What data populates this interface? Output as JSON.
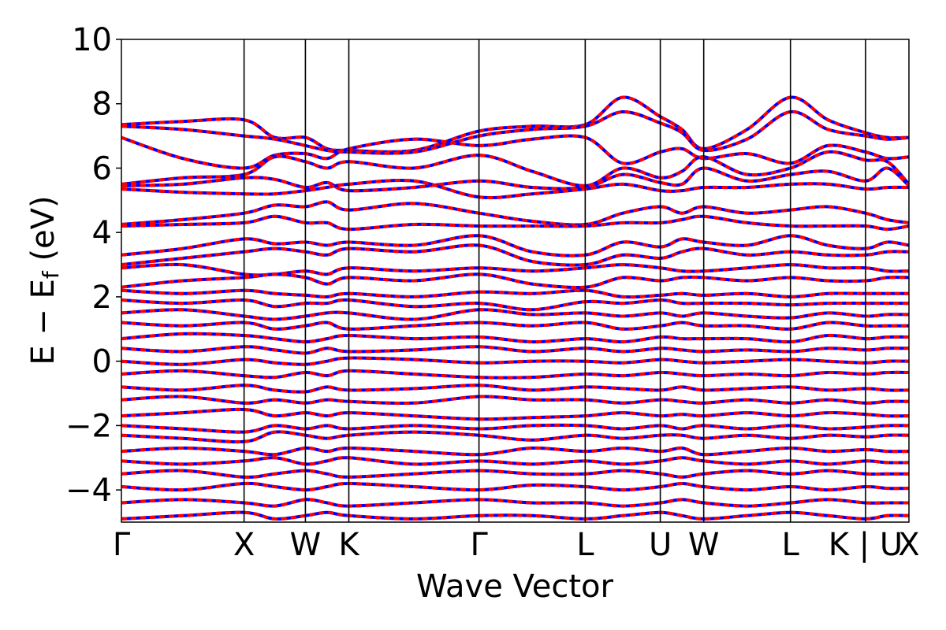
{
  "chart_data": {
    "type": "line",
    "title": "",
    "xlabel": "Wave Vector",
    "ylabel_parts": [
      "E",
      " − ",
      "E",
      "f",
      " (eV)"
    ],
    "ylim": [
      -5,
      10
    ],
    "yticks": [
      -4,
      -2,
      0,
      2,
      4,
      6,
      8,
      10
    ],
    "ytick_labels": [
      "−4",
      "−2",
      "0",
      "2",
      "4",
      "6",
      "8",
      "10"
    ],
    "grid": false,
    "legend": "none",
    "kpath": [
      {
        "label": "Γ",
        "x": 0.0
      },
      {
        "label": "X",
        "x": 1.0
      },
      {
        "label": "W",
        "x": 1.5
      },
      {
        "label": "K",
        "x": 1.854
      },
      {
        "label": "Γ",
        "x": 2.915
      },
      {
        "label": "L",
        "x": 3.781
      },
      {
        "label": "U",
        "x": 4.393
      },
      {
        "label": "W",
        "x": 4.747
      },
      {
        "label": "L",
        "x": 5.454
      },
      {
        "label": "K | U",
        "x": 6.066
      },
      {
        "label": "X",
        "x": 6.42
      }
    ],
    "series": [
      {
        "style": "solid",
        "color": "#0000ff"
      },
      {
        "style": "dashed",
        "color": "#ff0000"
      }
    ],
    "bands": [
      [
        7.35,
        7.45,
        7.5,
        6.95,
        6.95,
        6.6,
        6.55,
        6.55,
        7.15,
        7.3,
        7.35,
        8.2,
        7.6,
        7.2,
        6.6,
        7.2,
        8.2,
        7.5,
        7.1,
        6.95,
        6.95
      ],
      [
        7.3,
        7.2,
        7.0,
        6.9,
        6.7,
        6.55,
        6.5,
        6.5,
        7.0,
        7.2,
        7.3,
        7.75,
        7.4,
        7.1,
        6.55,
        6.9,
        7.75,
        7.2,
        7.0,
        6.9,
        6.95
      ],
      [
        6.95,
        6.3,
        6.0,
        6.4,
        6.45,
        6.3,
        6.6,
        6.9,
        6.7,
        6.9,
        6.95,
        6.15,
        6.5,
        6.6,
        6.3,
        6.45,
        6.15,
        6.7,
        6.5,
        6.3,
        6.35
      ],
      [
        5.5,
        5.7,
        5.8,
        6.35,
        6.2,
        6.0,
        6.2,
        6.0,
        6.4,
        5.9,
        5.45,
        6.0,
        5.7,
        5.9,
        6.35,
        5.8,
        6.0,
        6.5,
        6.25,
        6.2,
        5.5
      ],
      [
        5.45,
        5.5,
        5.7,
        5.65,
        5.4,
        5.55,
        5.3,
        5.4,
        5.6,
        5.4,
        5.4,
        5.8,
        5.55,
        5.5,
        6.0,
        5.6,
        5.8,
        5.9,
        5.6,
        6.0,
        5.45
      ],
      [
        5.35,
        5.25,
        5.2,
        5.2,
        5.3,
        5.4,
        5.5,
        5.6,
        5.1,
        5.2,
        5.35,
        5.5,
        5.3,
        5.3,
        5.4,
        5.4,
        5.5,
        5.5,
        5.35,
        5.4,
        5.4
      ],
      [
        4.25,
        4.4,
        4.6,
        4.85,
        4.8,
        4.95,
        4.7,
        4.9,
        4.6,
        4.35,
        4.25,
        4.6,
        4.8,
        4.6,
        4.8,
        4.6,
        4.7,
        4.8,
        4.6,
        4.4,
        4.3
      ],
      [
        4.2,
        4.25,
        4.3,
        4.5,
        4.3,
        4.3,
        4.1,
        4.25,
        4.2,
        4.2,
        4.2,
        4.3,
        4.3,
        4.4,
        4.5,
        4.3,
        4.2,
        4.2,
        4.2,
        4.1,
        4.2
      ],
      [
        3.3,
        3.5,
        3.8,
        3.65,
        3.7,
        3.6,
        3.7,
        3.6,
        3.9,
        3.4,
        3.3,
        3.7,
        3.55,
        3.8,
        3.7,
        3.6,
        3.9,
        3.6,
        3.5,
        3.7,
        3.6
      ],
      [
        3.0,
        3.2,
        3.4,
        3.5,
        3.4,
        3.3,
        3.5,
        3.4,
        3.6,
        3.1,
        3.0,
        3.3,
        3.2,
        3.4,
        3.5,
        3.3,
        3.4,
        3.3,
        3.3,
        3.4,
        3.4
      ],
      [
        2.9,
        3.0,
        2.7,
        2.7,
        2.8,
        2.7,
        2.9,
        2.8,
        2.9,
        2.8,
        2.9,
        3.0,
        2.9,
        2.8,
        2.8,
        2.9,
        3.0,
        2.9,
        2.9,
        2.8,
        2.8
      ],
      [
        2.3,
        2.5,
        2.6,
        2.7,
        2.6,
        2.4,
        2.6,
        2.5,
        2.7,
        2.4,
        2.3,
        2.6,
        2.5,
        2.6,
        2.6,
        2.5,
        2.6,
        2.5,
        2.5,
        2.6,
        2.6
      ],
      [
        2.2,
        2.1,
        2.2,
        2.1,
        2.05,
        2.0,
        2.1,
        2.0,
        2.15,
        2.1,
        2.2,
        2.0,
        2.05,
        2.1,
        2.05,
        2.1,
        2.0,
        2.1,
        2.1,
        2.1,
        2.1
      ],
      [
        1.9,
        1.8,
        1.9,
        1.7,
        1.8,
        1.8,
        1.9,
        1.7,
        1.8,
        1.6,
        1.85,
        1.8,
        1.9,
        1.8,
        1.8,
        1.8,
        1.75,
        1.8,
        1.8,
        1.8,
        1.8
      ],
      [
        1.5,
        1.6,
        1.4,
        1.3,
        1.4,
        1.5,
        1.5,
        1.3,
        1.6,
        1.45,
        1.5,
        1.4,
        1.5,
        1.4,
        1.5,
        1.4,
        1.35,
        1.5,
        1.4,
        1.45,
        1.45
      ],
      [
        1.2,
        1.1,
        1.2,
        1.0,
        1.1,
        1.2,
        1.0,
        1.1,
        1.2,
        1.1,
        1.2,
        1.0,
        1.1,
        1.2,
        1.1,
        1.1,
        1.0,
        1.2,
        1.1,
        1.1,
        1.1
      ],
      [
        0.7,
        0.85,
        0.8,
        0.7,
        0.6,
        0.7,
        0.8,
        0.7,
        0.75,
        0.6,
        0.7,
        0.6,
        0.75,
        0.7,
        0.7,
        0.7,
        0.6,
        0.8,
        0.7,
        0.75,
        0.75
      ],
      [
        0.4,
        0.3,
        0.45,
        0.35,
        0.25,
        0.4,
        0.3,
        0.35,
        0.45,
        0.3,
        0.4,
        0.3,
        0.4,
        0.35,
        0.3,
        0.35,
        0.3,
        0.4,
        0.35,
        0.4,
        0.4
      ],
      [
        0.0,
        -0.1,
        0.05,
        -0.05,
        -0.1,
        0.0,
        0.1,
        0.05,
        -0.05,
        0.0,
        0.0,
        -0.05,
        0.05,
        0.0,
        -0.05,
        0.0,
        0.05,
        0.0,
        -0.05,
        0.0,
        0.0
      ],
      [
        -0.4,
        -0.3,
        -0.45,
        -0.5,
        -0.35,
        -0.45,
        -0.3,
        -0.4,
        -0.5,
        -0.5,
        -0.4,
        -0.45,
        -0.35,
        -0.4,
        -0.45,
        -0.4,
        -0.45,
        -0.35,
        -0.4,
        -0.35,
        -0.35
      ],
      [
        -0.8,
        -0.9,
        -0.75,
        -0.9,
        -0.95,
        -0.8,
        -0.9,
        -0.85,
        -0.75,
        -0.9,
        -0.8,
        -0.85,
        -0.9,
        -0.8,
        -0.9,
        -0.85,
        -0.8,
        -0.9,
        -0.85,
        -0.9,
        -0.9
      ],
      [
        -1.2,
        -1.1,
        -1.3,
        -1.2,
        -1.3,
        -1.2,
        -1.25,
        -1.3,
        -1.1,
        -1.2,
        -1.2,
        -1.3,
        -1.2,
        -1.25,
        -1.3,
        -1.2,
        -1.3,
        -1.2,
        -1.3,
        -1.25,
        -1.25
      ],
      [
        -1.7,
        -1.6,
        -1.5,
        -1.7,
        -1.6,
        -1.7,
        -1.6,
        -1.7,
        -1.8,
        -1.75,
        -1.7,
        -1.6,
        -1.7,
        -1.65,
        -1.7,
        -1.6,
        -1.7,
        -1.6,
        -1.65,
        -1.7,
        -1.7
      ],
      [
        -2.0,
        -2.1,
        -2.2,
        -2.0,
        -2.1,
        -2.0,
        -2.1,
        -2.0,
        -2.1,
        -2.0,
        -2.0,
        -2.1,
        -2.0,
        -2.1,
        -2.0,
        -2.1,
        -2.0,
        -2.1,
        -2.05,
        -2.0,
        -2.0
      ],
      [
        -2.3,
        -2.4,
        -2.5,
        -2.2,
        -2.3,
        -2.4,
        -2.3,
        -2.2,
        -2.3,
        -2.45,
        -2.3,
        -2.4,
        -2.3,
        -2.3,
        -2.4,
        -2.3,
        -2.4,
        -2.3,
        -2.35,
        -2.3,
        -2.3
      ],
      [
        -2.8,
        -2.7,
        -2.8,
        -2.9,
        -2.7,
        -2.8,
        -2.7,
        -2.8,
        -2.9,
        -2.7,
        -2.8,
        -2.7,
        -2.8,
        -2.7,
        -2.9,
        -2.8,
        -2.7,
        -2.8,
        -2.75,
        -2.8,
        -2.8
      ],
      [
        -3.1,
        -3.2,
        -3.1,
        -3.0,
        -3.2,
        -3.1,
        -3.0,
        -3.2,
        -3.1,
        -3.2,
        -3.1,
        -3.2,
        -3.1,
        -3.0,
        -3.1,
        -3.2,
        -3.1,
        -3.2,
        -3.1,
        -3.15,
        -3.15
      ],
      [
        -3.5,
        -3.4,
        -3.6,
        -3.5,
        -3.4,
        -3.5,
        -3.6,
        -3.5,
        -3.4,
        -3.5,
        -3.5,
        -3.4,
        -3.5,
        -3.6,
        -3.5,
        -3.4,
        -3.5,
        -3.4,
        -3.5,
        -3.5,
        -3.5
      ],
      [
        -3.9,
        -4.0,
        -3.8,
        -3.9,
        -4.0,
        -3.9,
        -3.8,
        -3.9,
        -4.0,
        -3.85,
        -3.9,
        -4.0,
        -3.9,
        -3.8,
        -3.9,
        -4.0,
        -3.9,
        -4.0,
        -3.9,
        -3.95,
        -3.95
      ],
      [
        -4.4,
        -4.3,
        -4.4,
        -4.5,
        -4.3,
        -4.4,
        -4.5,
        -4.4,
        -4.3,
        -4.4,
        -4.4,
        -4.5,
        -4.4,
        -4.3,
        -4.4,
        -4.5,
        -4.4,
        -4.3,
        -4.4,
        -4.4,
        -4.4
      ],
      [
        -4.9,
        -4.8,
        -4.7,
        -4.9,
        -4.8,
        -4.7,
        -4.8,
        -4.9,
        -4.8,
        -4.8,
        -4.9,
        -4.8,
        -4.7,
        -4.8,
        -4.9,
        -4.8,
        -4.7,
        -4.8,
        -4.9,
        -4.8,
        -4.8
      ]
    ]
  }
}
